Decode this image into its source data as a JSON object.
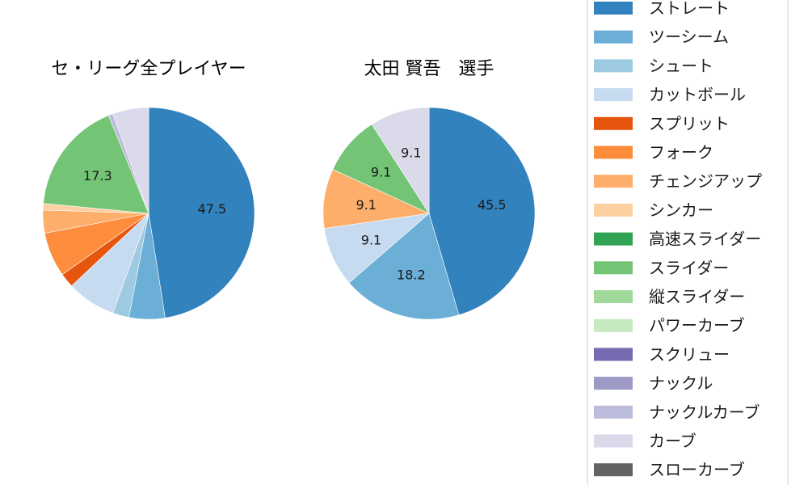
{
  "chart_data": [
    {
      "type": "pie",
      "title": "セ・リーグ全プレイヤー",
      "categories": [
        "ストレート",
        "ツーシーム",
        "シュート",
        "カットボール",
        "スプリット",
        "フォーク",
        "チェンジアップ",
        "シンカー",
        "高速スライダー",
        "スライダー",
        "縦スライダー",
        "パワーカーブ",
        "スクリュー",
        "ナックル",
        "ナックルカーブ",
        "カーブ",
        "スローカーブ"
      ],
      "values": [
        47.5,
        5.5,
        2.5,
        7.5,
        2.2,
        6.8,
        3.5,
        1.0,
        0,
        17.3,
        0,
        0,
        0,
        0,
        0.7,
        5.5,
        0
      ],
      "labels": [
        "47.5",
        "",
        "",
        "",
        "",
        "",
        "",
        "",
        "",
        "17.3",
        "",
        "",
        "",
        "",
        "",
        "",
        ""
      ]
    },
    {
      "type": "pie",
      "title": "太田 賢吾　選手",
      "categories": [
        "ストレート",
        "ツーシーム",
        "シュート",
        "カットボール",
        "スプリット",
        "フォーク",
        "チェンジアップ",
        "シンカー",
        "高速スライダー",
        "スライダー",
        "縦スライダー",
        "パワーカーブ",
        "スクリュー",
        "ナックル",
        "ナックルカーブ",
        "カーブ",
        "スローカーブ"
      ],
      "values": [
        45.5,
        18.2,
        0,
        9.1,
        0,
        0,
        9.1,
        0,
        0,
        9.1,
        0,
        0,
        0,
        0,
        0,
        9.1,
        0
      ],
      "labels": [
        "45.5",
        "18.2",
        "",
        "9.1",
        "",
        "",
        "9.1",
        "",
        "",
        "9.1",
        "",
        "",
        "",
        "",
        "",
        "9.1",
        ""
      ]
    }
  ],
  "legend": {
    "entries": [
      "ストレート",
      "ツーシーム",
      "シュート",
      "カットボール",
      "スプリット",
      "フォーク",
      "チェンジアップ",
      "シンカー",
      "高速スライダー",
      "スライダー",
      "縦スライダー",
      "パワーカーブ",
      "スクリュー",
      "ナックル",
      "ナックルカーブ",
      "カーブ",
      "スローカーブ"
    ],
    "colors": [
      "#3182bd",
      "#6baed6",
      "#9ecae1",
      "#c6dbef",
      "#e6550d",
      "#fd8d3c",
      "#fdae6b",
      "#fdd0a2",
      "#31a354",
      "#74c476",
      "#a1d99b",
      "#c7e9c0",
      "#756bb1",
      "#9e9ac8",
      "#bcbddc",
      "#dadaeb",
      "#636363"
    ],
    "placement": "right"
  }
}
